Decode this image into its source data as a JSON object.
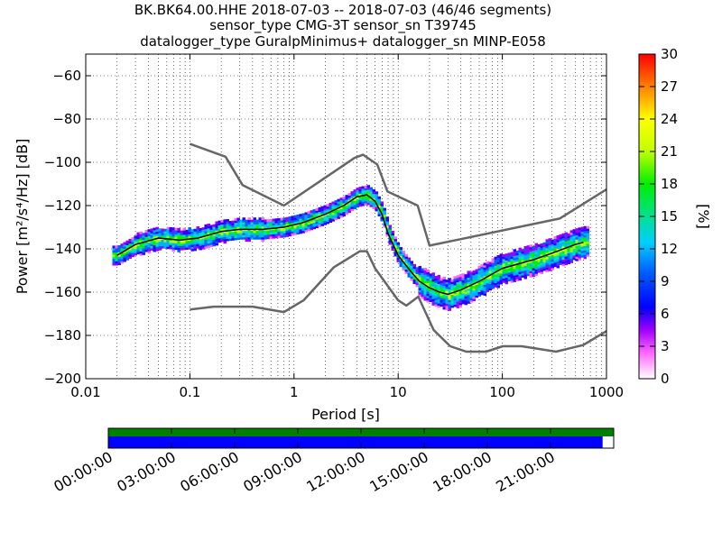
{
  "title_lines": [
    "BK.BK64.00.HHE   2018-07-03 -- 2018-07-03  (46/46 segments)",
    "sensor_type CMG-3T sensor_sn T39745",
    "datalogger_type GuralpMinimus+ datalogger_sn MINP-E058"
  ],
  "chart_data": {
    "type": "heatmap",
    "xlabel": "Period [s]",
    "ylabel": "Power [m²/s⁴/Hz] [dB]",
    "xscale": "log",
    "xlim": [
      0.01,
      1000
    ],
    "ylim": [
      -200,
      -50
    ],
    "xticks": [
      0.01,
      0.1,
      1,
      10,
      100,
      1000
    ],
    "xtick_labels": [
      "0.01",
      "0.1",
      "1",
      "10",
      "100",
      "1000"
    ],
    "yticks": [
      -200,
      -180,
      -160,
      -140,
      -120,
      -100,
      -80,
      -60
    ],
    "ytick_labels": [
      "−200",
      "−180",
      "−160",
      "−140",
      "−120",
      "−100",
      "−80",
      "−60"
    ],
    "grid": true,
    "colorbar": {
      "label": "[%]",
      "range": [
        0,
        30
      ],
      "ticks": [
        "0",
        "3",
        "6",
        "9",
        "12",
        "15",
        "18",
        "21",
        "24",
        "27",
        "30"
      ]
    },
    "mode_line": {
      "period": [
        0.02,
        0.03,
        0.05,
        0.08,
        0.12,
        0.2,
        0.3,
        0.5,
        0.8,
        1.2,
        2,
        3,
        4,
        5,
        6,
        7,
        8,
        10,
        13,
        16,
        20,
        25,
        30,
        40,
        60,
        100,
        200,
        300,
        500,
        600
      ],
      "db": [
        -143,
        -138,
        -135,
        -136,
        -135,
        -132,
        -131,
        -131,
        -130,
        -128,
        -124,
        -120,
        -116,
        -115,
        -118,
        -124,
        -133,
        -143,
        -150,
        -155,
        -158,
        -160,
        -161,
        -159,
        -155,
        -149,
        -145,
        -142,
        -138,
        -137
      ]
    },
    "nhnm": {
      "period": [
        0.1,
        0.22,
        0.32,
        0.8,
        3.8,
        4.6,
        6.3,
        7.9,
        15.4,
        20,
        354.8,
        1000
      ],
      "db": [
        -91.5,
        -97.4,
        -110.5,
        -120,
        -98,
        -96.5,
        -101,
        -113.5,
        -120,
        -138.5,
        -126,
        -112.5
      ]
    },
    "nlnm": {
      "period": [
        0.1,
        0.17,
        0.4,
        0.8,
        1.24,
        2.4,
        4.3,
        5,
        6,
        10,
        12,
        15.6,
        21.9,
        31.6,
        45,
        70,
        101,
        154,
        328,
        600,
        1000
      ],
      "db": [
        -168,
        -166.7,
        -166.7,
        -169.2,
        -163.7,
        -148.6,
        -141.1,
        -141.1,
        -149,
        -163.8,
        -166.2,
        -162.1,
        -177.5,
        -185,
        -187.5,
        -187.5,
        -185,
        -185,
        -187.5,
        -184.4,
        -178
      ]
    },
    "time_axis": {
      "ticks": [
        "00:00:00",
        "03:00:00",
        "06:00:00",
        "09:00:00",
        "12:00:00",
        "15:00:00",
        "18:00:00",
        "21:00:00"
      ],
      "data_coverage_fraction": 0.978,
      "colors": {
        "data": "#0000ff",
        "gaps": "#ffffff",
        "top": "#008000"
      }
    }
  }
}
